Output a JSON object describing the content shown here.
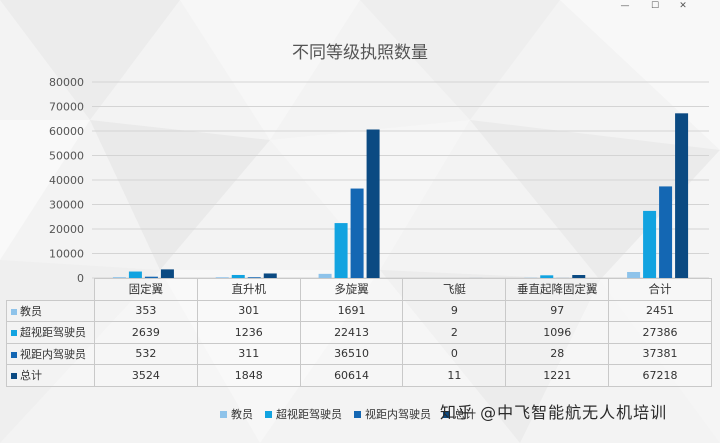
{
  "window": {
    "minimize_glyph": "—",
    "maximize_glyph": "☐",
    "close_glyph": "✕"
  },
  "watermark": "知乎 @中飞智能航无人机培训",
  "chart_data": {
    "type": "bar",
    "title": "不同等级执照数量",
    "categories": [
      "固定翼",
      "直升机",
      "多旋翼",
      "飞艇",
      "垂直起降固定翼",
      "合计"
    ],
    "yticks": [
      0,
      10000,
      20000,
      30000,
      40000,
      50000,
      60000,
      70000,
      80000
    ],
    "ylim": [
      0,
      80000
    ],
    "grid": true,
    "legend_position": "bottom",
    "series": [
      {
        "name": "教员",
        "color": "#8ec3ea",
        "values": [
          353,
          301,
          1691,
          9,
          97,
          2451
        ]
      },
      {
        "name": "超视距驾驶员",
        "color": "#12a3e0",
        "values": [
          2639,
          1236,
          22413,
          2,
          1096,
          27386
        ]
      },
      {
        "name": "视距内驾驶员",
        "color": "#1467b3",
        "values": [
          532,
          311,
          36510,
          0,
          28,
          37381
        ]
      },
      {
        "name": "总计",
        "color": "#0b4a82",
        "values": [
          3524,
          1848,
          60614,
          11,
          1221,
          67218
        ]
      }
    ]
  }
}
